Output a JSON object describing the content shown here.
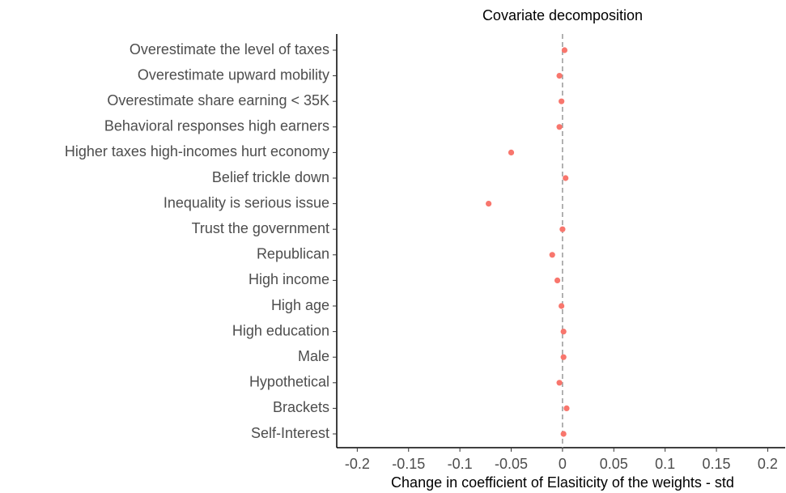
{
  "chart_data": {
    "type": "dot",
    "title": "Covariate decomposition",
    "x_label": "Change in coefficient of Elasiticity of the weights - std",
    "categories": [
      "Overestimate the level of taxes",
      "Overestimate upward mobility",
      "Overestimate share earning < 35K",
      "Behavioral responses high earners",
      "Higher taxes high-incomes hurt economy",
      "Belief trickle down",
      "Inequality is serious issue",
      "Trust the government",
      "Republican",
      "High income",
      "High age",
      "High education",
      "Male",
      "Hypothetical",
      "Brackets",
      "Self-Interest"
    ],
    "values": [
      0.002,
      -0.003,
      -0.001,
      -0.003,
      -0.05,
      0.003,
      -0.072,
      0,
      -0.01,
      -0.005,
      -0.001,
      0.001,
      0.001,
      -0.003,
      0.004,
      0.001
    ],
    "color": "#F8766D",
    "xlim": [
      -0.22,
      0.217
    ],
    "xticks": [
      -0.2,
      -0.15,
      -0.1,
      -0.05,
      0,
      0.05,
      0.1,
      0.15,
      0.2
    ],
    "reference_line": 0,
    "grid": false
  }
}
